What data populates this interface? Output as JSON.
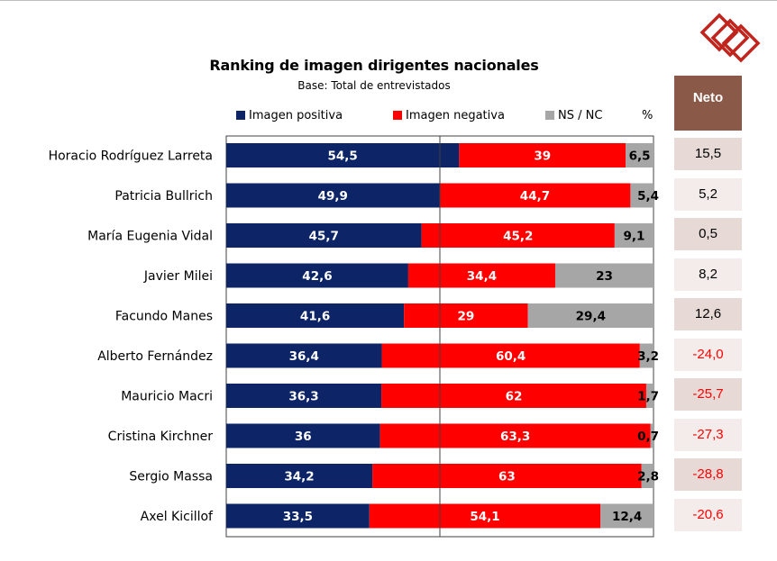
{
  "chart_data": {
    "type": "bar",
    "orientation": "horizontal",
    "stacked": true,
    "title": "Ranking de imagen dirigentes nacionales",
    "subtitle": "Base: Total de entrevistados",
    "unit_label": "%",
    "xlim": [
      0,
      100
    ],
    "categories": [
      "Horacio Rodríguez Larreta",
      "Patricia Bullrich",
      "María Eugenia Vidal",
      "Javier Milei",
      "Facundo Manes",
      "Alberto Fernández",
      "Mauricio Macri",
      "Cristina Kirchner",
      "Sergio Massa",
      "Axel Kicillof"
    ],
    "series": [
      {
        "name": "Imagen positiva",
        "color": "#0d2566",
        "values": [
          54.5,
          49.9,
          45.7,
          42.6,
          41.6,
          36.4,
          36.3,
          36,
          34.2,
          33.5
        ],
        "labels": [
          "54,5",
          "49,9",
          "45,7",
          "42,6",
          "41,6",
          "36,4",
          "36,3",
          "36",
          "34,2",
          "33,5"
        ]
      },
      {
        "name": "Imagen negativa",
        "color": "#ff0000",
        "values": [
          39,
          44.7,
          45.2,
          34.4,
          29,
          60.4,
          62,
          63.3,
          63,
          54.1
        ],
        "labels": [
          "39",
          "44,7",
          "45,2",
          "34,4",
          "29",
          "60,4",
          "62",
          "63,3",
          "63",
          "54,1"
        ]
      },
      {
        "name": "NS / NC",
        "color": "#a6a6a6",
        "values": [
          6.5,
          5.4,
          9.1,
          23,
          29.4,
          3.2,
          1.7,
          0.7,
          2.8,
          12.4
        ],
        "labels": [
          "6,5",
          "5,4",
          "9,1",
          "23",
          "29,4",
          "3,2",
          "1,7",
          "0,7",
          "2,8",
          "12,4"
        ]
      }
    ],
    "legend_position": "top",
    "grid": false,
    "reference_line": 50
  },
  "neto": {
    "header": "Neto",
    "values": [
      "15,5",
      "5,2",
      "0,5",
      "8,2",
      "12,6",
      "-24,0",
      "-25,7",
      "-27,3",
      "-28,8",
      "-20,6"
    ]
  },
  "colors": {
    "neto_header_bg": "#8b5947",
    "neto_row_dark": "#e6d9d6",
    "neto_row_light": "#f3ecea",
    "neto_negative_text": "#ff0000",
    "neto_positive_text": "#000000",
    "logo": "#c0241c"
  },
  "icons": {
    "logo": "interlocked-diamond-logo"
  }
}
